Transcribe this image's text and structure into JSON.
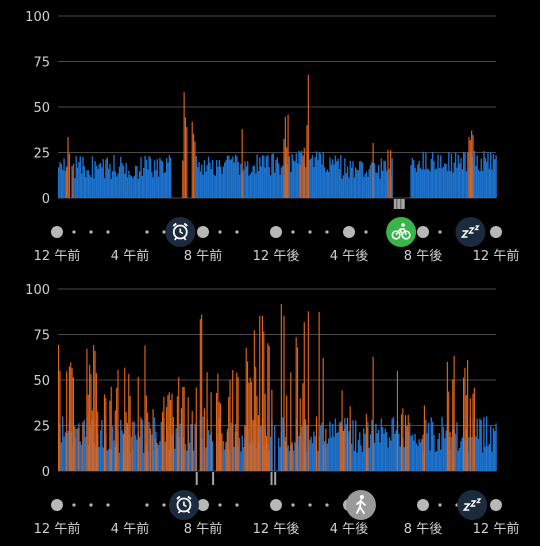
{
  "colors": {
    "bar_blue": "#1f74d0",
    "bar_orange": "#e0651b",
    "grid": "#4a4a4a",
    "dot": "#b8b8b8",
    "icon_circle": "#1b2a3d",
    "icon_green": "#39b54a",
    "icon_gray": "#9a9a9a",
    "gap_marker": "#a6a6a6"
  },
  "chart_data": [
    {
      "type": "bar",
      "ylim": [
        0,
        100
      ],
      "yticks": [
        "0",
        "25",
        "50",
        "75",
        "100"
      ],
      "xticks": [
        "12 午前",
        "4 午前",
        "8 午前",
        "12 午後",
        "4 午後",
        "8 午後",
        "12 午前"
      ],
      "grid": true,
      "event_icons": [
        {
          "icon": "alarm-clock-icon",
          "hour": 6.7
        },
        {
          "icon": "cycling-icon",
          "hour": 18.8
        },
        {
          "icon": "sleep-icon",
          "hour": 22.6
        }
      ],
      "missing_data": [
        [
          18.4,
          19.0
        ]
      ],
      "series": [
        {
          "color": "blue",
          "segments": [
            [
              0.0,
              0.5,
              15,
              25
            ],
            [
              0.7,
              6.2,
              10,
              24
            ],
            [
              7.5,
              10.0,
              12,
              24
            ],
            [
              10.0,
              12.5,
              11,
              25
            ],
            [
              12.5,
              15.5,
              14,
              26
            ],
            [
              15.5,
              18.3,
              10,
              22
            ],
            [
              19.0,
              19.3,
              0,
              0
            ],
            [
              19.3,
              24.0,
              14,
              26
            ]
          ]
        },
        {
          "color": "orange",
          "segments": [
            [
              0.4,
              0.8,
              15,
              34
            ],
            [
              6.8,
              7.5,
              20,
              61
            ],
            [
              10.0,
              10.2,
              12,
              38
            ],
            [
              12.3,
              12.6,
              18,
              51
            ],
            [
              13.2,
              13.5,
              15,
              33
            ],
            [
              13.6,
              13.7,
              20,
              78
            ],
            [
              17.1,
              17.3,
              15,
              34
            ],
            [
              18.0,
              18.2,
              16,
              44
            ],
            [
              22.3,
              22.8,
              18,
              38
            ]
          ]
        }
      ]
    },
    {
      "type": "bar",
      "ylim": [
        0,
        100
      ],
      "yticks": [
        "0",
        "25",
        "50",
        "75",
        "100"
      ],
      "xticks": [
        "12 午前",
        "4 午前",
        "8 午前",
        "12 午後",
        "4 午後",
        "8 午後",
        "12 午前"
      ],
      "grid": true,
      "event_icons": [
        {
          "icon": "alarm-clock-icon",
          "hour": 6.9
        },
        {
          "icon": "walking-icon",
          "hour": 16.6
        },
        {
          "icon": "sleep-icon",
          "hour": 22.7
        }
      ],
      "missing_data": [
        [
          7.6,
          7.7
        ],
        [
          8.5,
          8.6
        ],
        [
          11.7,
          11.8
        ],
        [
          11.9,
          12.0
        ]
      ],
      "series": [
        {
          "color": "blue",
          "segments": [
            [
              0.0,
              24.0,
              10,
              30
            ]
          ]
        },
        {
          "color": "orange",
          "segments": [
            [
              0.0,
              5.0,
              20,
              70
            ],
            [
              5.0,
              6.3,
              15,
              45
            ],
            [
              6.3,
              7.4,
              25,
              55
            ],
            [
              7.4,
              8.2,
              25,
              86
            ],
            [
              8.2,
              9.6,
              15,
              60
            ],
            [
              9.6,
              11.4,
              15,
              88
            ],
            [
              11.4,
              13.0,
              15,
              93
            ],
            [
              13.0,
              14.7,
              15,
              90
            ],
            [
              15.4,
              16.0,
              15,
              50
            ],
            [
              16.8,
              17.3,
              18,
              83
            ],
            [
              18.5,
              19.2,
              18,
              60
            ],
            [
              19.8,
              20.2,
              15,
              60
            ],
            [
              21.3,
              23.1,
              15,
              65
            ]
          ]
        }
      ]
    }
  ]
}
